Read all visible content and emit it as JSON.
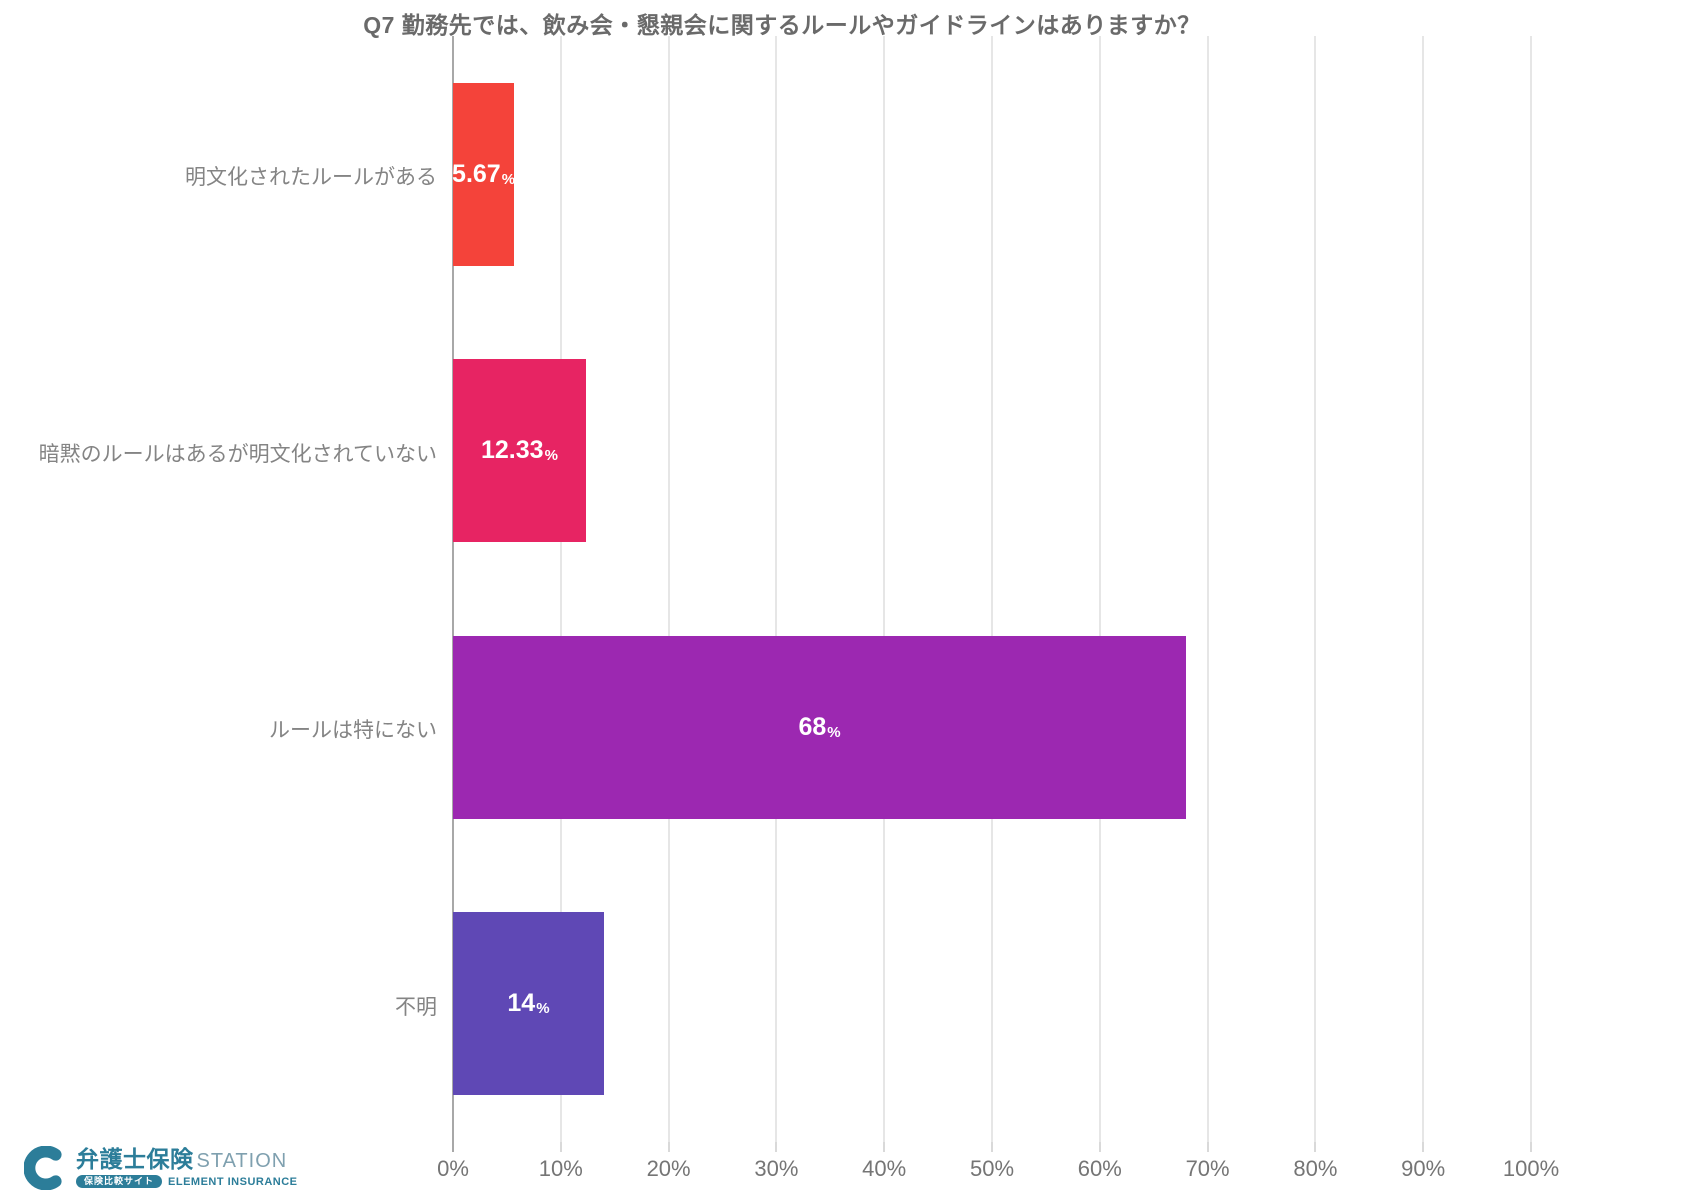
{
  "chart_data": {
    "type": "bar",
    "orientation": "horizontal",
    "title": "Q7 勤務先では、飲み会・懇親会に関するルールやガイドラインはありますか？",
    "categories": [
      "明文化されたルールがある",
      "暗黙のルールはあるが明文化されていない",
      "ルールは特にない",
      "不明"
    ],
    "values": [
      5.67,
      12.33,
      68,
      14
    ],
    "value_labels": [
      "5.67",
      "12.33",
      "68",
      "14"
    ],
    "value_suffix": "%",
    "bar_colors": [
      "#F4433A",
      "#E72463",
      "#9C28B1",
      "#5F48B5"
    ],
    "value_label_color": "#ffffff",
    "xlim": [
      0,
      100
    ],
    "xtick_labels": [
      "0%",
      "10%",
      "20%",
      "30%",
      "40%",
      "50%",
      "60%",
      "70%",
      "80%",
      "90%",
      "100%"
    ],
    "xtick_values": [
      0,
      10,
      20,
      30,
      40,
      50,
      60,
      70,
      80,
      90,
      100
    ],
    "grid": "vertical",
    "legend": "none"
  },
  "footer_logo": {
    "brand_jp": "弁護士保険",
    "brand_en": "STATION",
    "badge": "保険比較サイト",
    "company": "ELEMENT INSURANCE",
    "brand_color": "#2C7D99",
    "heart_icon": "heart"
  }
}
